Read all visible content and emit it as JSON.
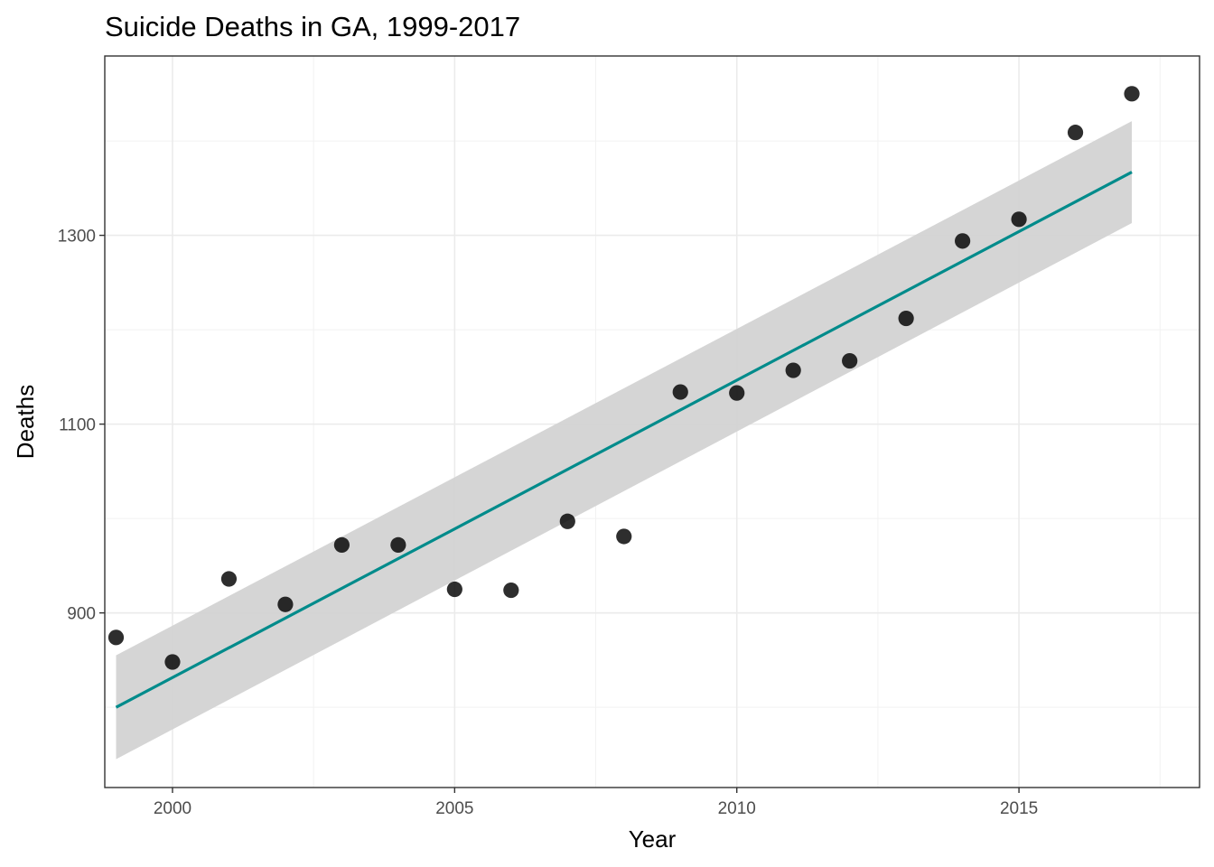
{
  "chart_data": {
    "type": "scatter",
    "title": "Suicide Deaths in GA, 1999-2017",
    "xlabel": "Year",
    "ylabel": "Deaths",
    "xlim": [
      1998.8,
      2018.2
    ],
    "ylim": [
      715,
      1490
    ],
    "x_ticks": [
      2000,
      2005,
      2010,
      2015
    ],
    "y_ticks": [
      900,
      1100,
      1300
    ],
    "x_minor": [
      2002.5,
      2007.5,
      2012.5,
      2017.5
    ],
    "y_minor": [
      800,
      1000,
      1200,
      1400
    ],
    "grid": true,
    "series": [
      {
        "x": [
          1999,
          2000,
          2001,
          2002,
          2003,
          2004,
          2005,
          2006,
          2007,
          2008,
          2009,
          2010,
          2011,
          2012,
          2013,
          2014,
          2015,
          2016,
          2017
        ],
        "y": [
          874,
          848,
          936,
          909,
          972,
          972,
          925,
          924,
          997,
          981,
          1134,
          1133,
          1157,
          1167,
          1212,
          1294,
          1317,
          1409,
          1450
        ],
        "color": "#000000"
      }
    ],
    "fit": {
      "method": "linear",
      "x": [
        1999,
        2017
      ],
      "y": [
        800,
        1367
      ],
      "ci_lower": [
        745,
        1313
      ],
      "ci_upper": [
        855,
        1421
      ],
      "line_color": "#008B8B",
      "band_color": "#d3d3d3"
    }
  }
}
